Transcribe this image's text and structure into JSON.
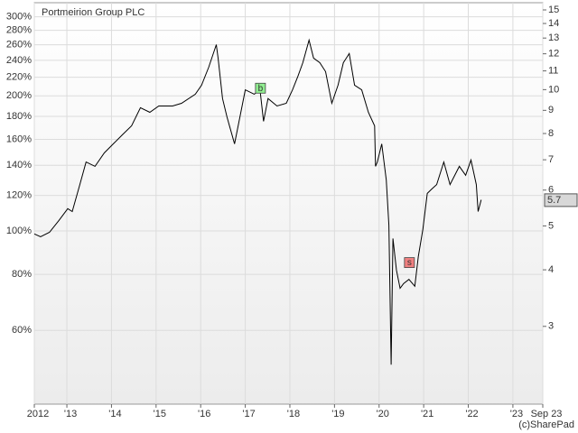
{
  "chart_data": {
    "type": "line",
    "title": "Portmeirion Group PLC",
    "credit": "(c)SharePad",
    "log_scale": true,
    "grid": true,
    "x": [
      2012.27,
      2012.41,
      2012.61,
      2012.82,
      2013.02,
      2013.12,
      2013.29,
      2013.43,
      2013.63,
      2013.84,
      2014.04,
      2014.24,
      2014.45,
      2014.65,
      2014.86,
      2015.06,
      2015.37,
      2015.57,
      2015.88,
      2016.02,
      2016.18,
      2016.35,
      2016.39,
      2016.49,
      2016.59,
      2016.76,
      2016.84,
      2017.0,
      2017.2,
      2017.33,
      2017.41,
      2017.51,
      2017.71,
      2017.92,
      2018.06,
      2018.18,
      2018.29,
      2018.43,
      2018.53,
      2018.67,
      2018.8,
      2018.94,
      2019.08,
      2019.2,
      2019.33,
      2019.45,
      2019.61,
      2019.76,
      2019.9,
      2019.92,
      2019.96,
      2020.06,
      2020.16,
      2020.22,
      2020.27,
      2020.31,
      2020.39,
      2020.47,
      2020.55,
      2020.67,
      2020.8,
      2020.88,
      2020.98,
      2021.08,
      2021.18,
      2021.29,
      2021.45,
      2021.59,
      2021.8,
      2021.94,
      2022.06,
      2022.18,
      2022.22,
      2022.29
    ],
    "series": [
      {
        "color": "#000000",
        "axis": "y2",
        "values": [
          4.8,
          4.73,
          4.84,
          5.14,
          5.46,
          5.38,
          6.17,
          6.92,
          6.77,
          7.25,
          7.59,
          7.94,
          8.32,
          9.12,
          8.91,
          9.2,
          9.2,
          9.33,
          9.77,
          10.23,
          11.21,
          12.57,
          11.74,
          9.56,
          8.71,
          7.59,
          8.32,
          9.99,
          9.77,
          9.99,
          8.51,
          9.56,
          9.2,
          9.33,
          9.99,
          10.71,
          11.47,
          12.86,
          11.74,
          11.47,
          10.96,
          9.33,
          10.23,
          11.47,
          12.01,
          10.23,
          9.99,
          8.91,
          8.32,
          6.77,
          6.92,
          7.59,
          6.32,
          5.02,
          2.47,
          4.69,
          3.99,
          3.64,
          3.73,
          3.81,
          3.68,
          4.28,
          4.91,
          5.9,
          6.03,
          6.17,
          6.92,
          6.17,
          6.77,
          6.47,
          6.99,
          6.17,
          5.38,
          5.71
        ]
      }
    ],
    "current_value": 5.7,
    "annotations": [
      {
        "text": "b",
        "x": 2017.33,
        "y": 10.05,
        "color": "#90ee90"
      },
      {
        "text": "s",
        "x": 2020.67,
        "y": 4.14,
        "color": "#f08080"
      }
    ],
    "xlim": [
      2012.27,
      2023.67
    ],
    "xticks": [
      {
        "value": 2012.27,
        "label": "2012"
      },
      {
        "value": 2013,
        "label": "'13"
      },
      {
        "value": 2014,
        "label": "'14"
      },
      {
        "value": 2015,
        "label": "'15"
      },
      {
        "value": 2016,
        "label": "'16"
      },
      {
        "value": 2017,
        "label": "'17"
      },
      {
        "value": 2018,
        "label": "'18"
      },
      {
        "value": 2019,
        "label": "'19"
      },
      {
        "value": 2020,
        "label": "'20"
      },
      {
        "value": 2021,
        "label": "'21"
      },
      {
        "value": 2022,
        "label": "'22"
      },
      {
        "value": 2023,
        "label": "'23"
      },
      {
        "value": 2023.67,
        "label": "Sep 23"
      }
    ],
    "ylim": [
      41.1,
      322.6
    ],
    "yticks": [
      {
        "value": 60,
        "label": "60%"
      },
      {
        "value": 80,
        "label": "80%"
      },
      {
        "value": 100,
        "label": "100%"
      },
      {
        "value": 120,
        "label": "120%"
      },
      {
        "value": 140,
        "label": "140%"
      },
      {
        "value": 160,
        "label": "160%"
      },
      {
        "value": 180,
        "label": "180%"
      },
      {
        "value": 200,
        "label": "200%"
      },
      {
        "value": 220,
        "label": "220%"
      },
      {
        "value": 240,
        "label": "240%"
      },
      {
        "value": 260,
        "label": "260%"
      },
      {
        "value": 280,
        "label": "280%"
      },
      {
        "value": 300,
        "label": "300%"
      }
    ],
    "y2lim": [
      2.02,
      15.56
    ],
    "y2ticks": [
      3,
      4,
      5,
      6,
      7,
      8,
      9,
      10,
      11,
      12,
      13,
      14,
      15
    ]
  }
}
